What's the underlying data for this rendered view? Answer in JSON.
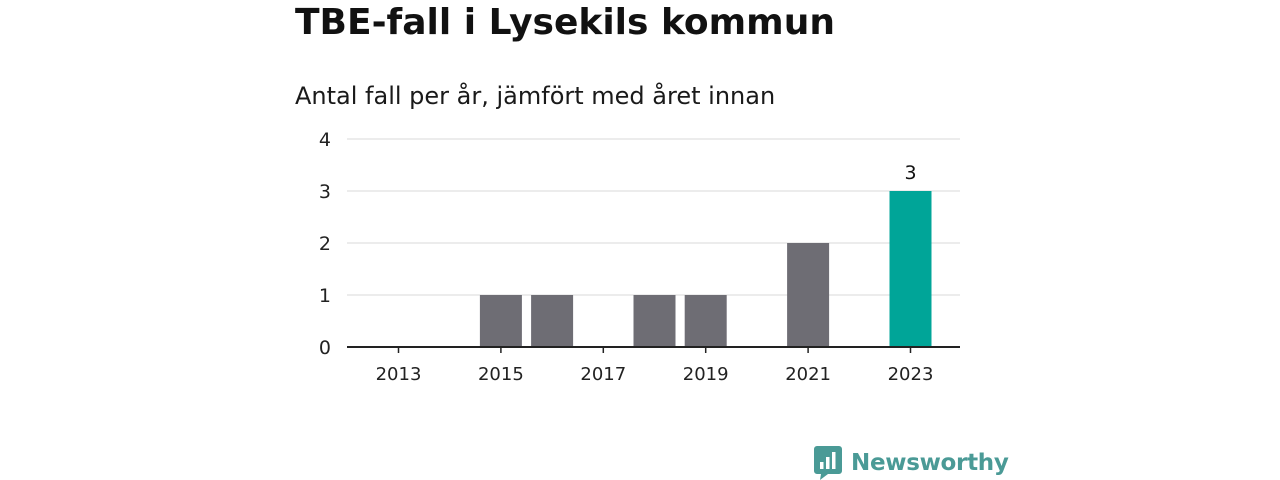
{
  "header": {
    "title": "TBE-fall i Lysekils kommun",
    "subtitle": "Antal fall per år, jämfört med året innan"
  },
  "brand": {
    "name": "Newsworthy",
    "icon": "bar-chart-speech-bubble-icon",
    "color": "#4a9a96"
  },
  "colors": {
    "bar": "#6e6d74",
    "highlight": "#00a598",
    "grid": "#d9d9d9",
    "axis": "#222222"
  },
  "chart_data": {
    "type": "bar",
    "title": "TBE-fall i Lysekils kommun",
    "subtitle": "Antal fall per år, jämfört med året innan",
    "categories": [
      "2013",
      "2014",
      "2015",
      "2016",
      "2017",
      "2018",
      "2019",
      "2020",
      "2021",
      "2022",
      "2023"
    ],
    "values": [
      0,
      0,
      1,
      1,
      0,
      1,
      1,
      0,
      2,
      0,
      3
    ],
    "highlight_category": "2023",
    "value_labels": [
      {
        "category": "2023",
        "text": "3"
      }
    ],
    "x_tick_labels": [
      "2013",
      "2015",
      "2017",
      "2019",
      "2021",
      "2023"
    ],
    "y_ticks": [
      0,
      1,
      2,
      3,
      4
    ],
    "ylim": [
      0,
      4
    ],
    "xlabel": "",
    "ylabel": "",
    "grid": true,
    "legend": "none"
  }
}
